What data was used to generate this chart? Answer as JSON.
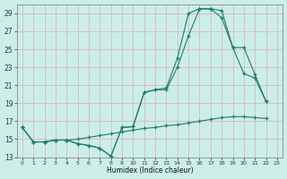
{
  "xlabel": "Humidex (Indice chaleur)",
  "bg_color": "#cceee8",
  "grid_color": "#b8ddd8",
  "line_color": "#1e7b6e",
  "xlim": [
    -0.5,
    23.5
  ],
  "ylim": [
    13,
    30
  ],
  "yticks": [
    13,
    15,
    17,
    19,
    21,
    23,
    25,
    27,
    29
  ],
  "xticks": [
    0,
    1,
    2,
    3,
    4,
    5,
    6,
    7,
    8,
    9,
    10,
    11,
    12,
    13,
    14,
    15,
    16,
    17,
    18,
    19,
    20,
    21,
    22,
    23
  ],
  "line1_x": [
    0,
    1,
    2,
    3,
    4,
    5,
    6,
    7,
    8,
    9,
    10,
    11,
    12,
    13,
    14,
    15,
    16,
    17,
    18,
    19,
    20,
    21,
    22
  ],
  "line1_y": [
    16.3,
    14.7,
    14.7,
    14.9,
    14.9,
    14.5,
    14.3,
    14.0,
    13.1,
    16.3,
    16.4,
    20.2,
    20.5,
    20.7,
    24.0,
    29.0,
    29.5,
    29.5,
    29.3,
    25.2,
    22.3,
    21.8,
    19.2
  ],
  "line2_x": [
    0,
    1,
    2,
    3,
    4,
    5,
    6,
    7,
    8,
    9,
    10,
    11,
    12,
    13,
    14,
    15,
    16,
    17,
    18,
    19,
    20,
    21,
    22
  ],
  "line2_y": [
    16.3,
    14.7,
    14.7,
    14.9,
    14.9,
    14.5,
    14.3,
    14.0,
    13.1,
    16.3,
    16.4,
    20.2,
    20.5,
    20.5,
    23.0,
    26.5,
    29.5,
    29.5,
    28.5,
    25.2,
    25.2,
    22.2,
    19.2
  ],
  "line3_x": [
    0,
    1,
    2,
    3,
    4,
    5,
    6,
    7,
    8,
    9,
    10,
    11,
    12,
    13,
    14,
    15,
    16,
    17,
    18,
    19,
    20,
    21,
    22
  ],
  "line3_y": [
    16.3,
    14.7,
    14.7,
    14.9,
    14.9,
    15.0,
    15.2,
    15.4,
    15.6,
    15.8,
    16.0,
    16.2,
    16.3,
    16.5,
    16.6,
    16.8,
    17.0,
    17.2,
    17.4,
    17.5,
    17.5,
    17.4,
    17.3
  ]
}
